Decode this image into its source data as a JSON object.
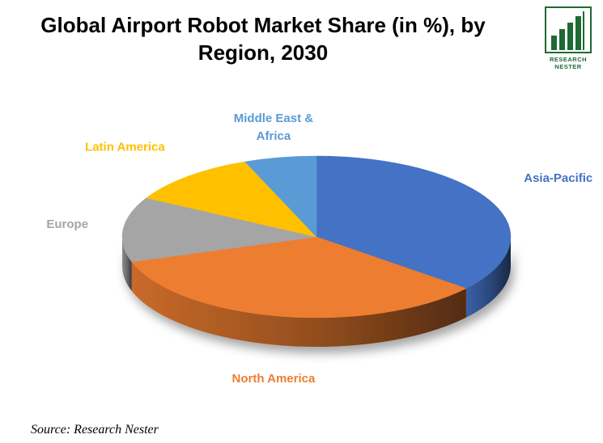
{
  "chart_data": {
    "type": "pie",
    "title_line1": "Global Airport Robot Market Share (in %), by",
    "title_line2": "Region, 2030",
    "slices": [
      {
        "label": "Asia-Pacific",
        "value": 36,
        "color": "#4472C4",
        "label_color": "#4472C4"
      },
      {
        "label": "North America",
        "value": 34,
        "color": "#ED7D31",
        "label_color": "#ED7D31"
      },
      {
        "label": "Europe",
        "value": 13,
        "color": "#A5A5A5",
        "label_color": "#A5A5A5"
      },
      {
        "label": "Latin America",
        "value": 11,
        "color": "#FFC000",
        "label_color": "#FFC000"
      },
      {
        "label": "Middle East &",
        "label_line2": "Africa",
        "value": 6,
        "color": "#5B9BD5",
        "label_color": "#5B9BD5"
      }
    ]
  },
  "logo": {
    "line1": "RESEARCH",
    "line2": "NESTER"
  },
  "source": "Source: Research Nester"
}
